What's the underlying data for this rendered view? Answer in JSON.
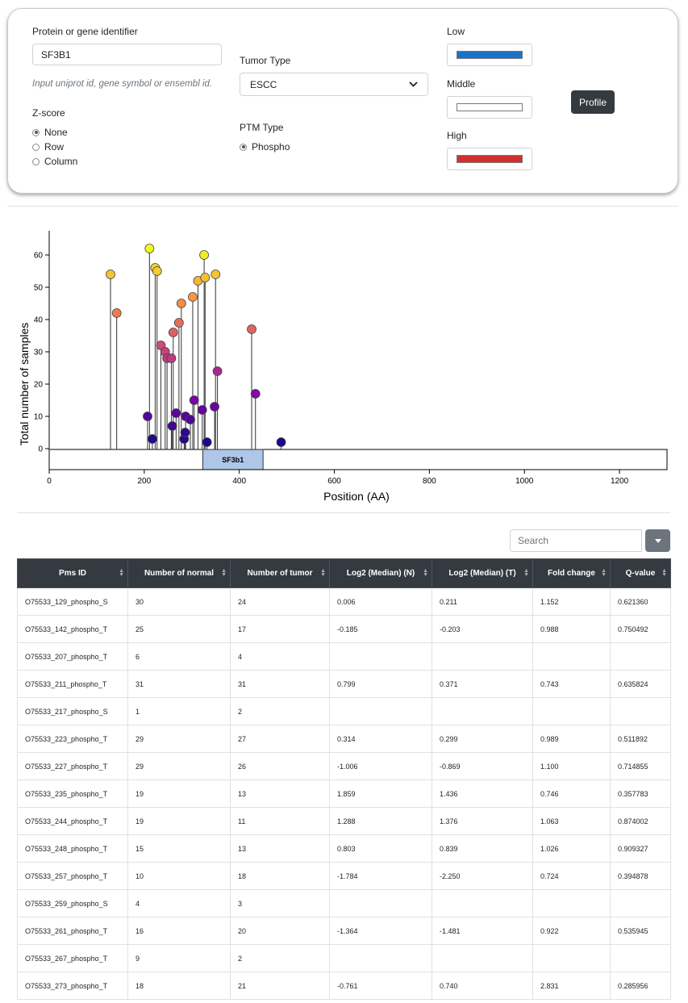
{
  "form": {
    "identifier_label": "Protein or gene identifier",
    "identifier_value": "SF3B1",
    "identifier_hint": "Input uniprot id, gene symbol or ensembl id.",
    "zscore_label": "Z-score",
    "zscore_options": [
      "None",
      "Row",
      "Column"
    ],
    "tumor_label": "Tumor Type",
    "tumor_value": "ESCC",
    "ptm_label": "PTM Type",
    "ptm_option": "Phospho",
    "low_label": "Low",
    "low_color": "#1a73c9",
    "middle_label": "Middle",
    "middle_color": "#ffffff",
    "high_label": "High",
    "high_color": "#d32f2f",
    "profile_label": "Profile"
  },
  "chart_data": {
    "type": "lollipop",
    "xlabel": "Position (AA)",
    "ylabel": "Total number of samples",
    "xlim": [
      0,
      1300
    ],
    "ylim": [
      0,
      65
    ],
    "xticks": [
      0,
      200,
      400,
      600,
      800,
      1000,
      1200
    ],
    "yticks": [
      0,
      10,
      20,
      30,
      40,
      50,
      60
    ],
    "domain": {
      "name": "SF3b1",
      "start": 330,
      "end": 450
    },
    "points": [
      {
        "x": 129,
        "y": 54
      },
      {
        "x": 142,
        "y": 42
      },
      {
        "x": 207,
        "y": 10
      },
      {
        "x": 211,
        "y": 62
      },
      {
        "x": 217,
        "y": 3
      },
      {
        "x": 223,
        "y": 56
      },
      {
        "x": 227,
        "y": 55
      },
      {
        "x": 235,
        "y": 32
      },
      {
        "x": 244,
        "y": 30
      },
      {
        "x": 248,
        "y": 28
      },
      {
        "x": 257,
        "y": 28
      },
      {
        "x": 259,
        "y": 7
      },
      {
        "x": 261,
        "y": 36
      },
      {
        "x": 267,
        "y": 11
      },
      {
        "x": 273,
        "y": 39
      },
      {
        "x": 278,
        "y": 45
      },
      {
        "x": 284,
        "y": 3
      },
      {
        "x": 286,
        "y": 5
      },
      {
        "x": 287,
        "y": 10
      },
      {
        "x": 297,
        "y": 9
      },
      {
        "x": 302,
        "y": 47
      },
      {
        "x": 305,
        "y": 15
      },
      {
        "x": 313,
        "y": 52
      },
      {
        "x": 322,
        "y": 12
      },
      {
        "x": 326,
        "y": 60
      },
      {
        "x": 328,
        "y": 53
      },
      {
        "x": 332,
        "y": 2
      },
      {
        "x": 348,
        "y": 13
      },
      {
        "x": 350,
        "y": 54
      },
      {
        "x": 354,
        "y": 24
      },
      {
        "x": 426,
        "y": 37
      },
      {
        "x": 434,
        "y": 17
      },
      {
        "x": 488,
        "y": 2
      }
    ]
  },
  "search": {
    "placeholder": "Search"
  },
  "table": {
    "headers": [
      "Pms ID",
      "Number of normal",
      "Number of tumor",
      "Log2 (Median) (N)",
      "Log2 (Median) (T)",
      "Fold change",
      "Q-value"
    ],
    "rows": [
      [
        "O75533_129_phospho_S",
        "30",
        "24",
        "0.006",
        "0.211",
        "1.152",
        "0.621360"
      ],
      [
        "O75533_142_phospho_T",
        "25",
        "17",
        "-0.185",
        "-0.203",
        "0.988",
        "0.750492"
      ],
      [
        "O75533_207_phospho_T",
        "6",
        "4",
        "",
        "",
        "",
        ""
      ],
      [
        "O75533_211_phospho_T",
        "31",
        "31",
        "0.799",
        "0.371",
        "0.743",
        "0.635824"
      ],
      [
        "O75533_217_phospho_S",
        "1",
        "2",
        "",
        "",
        "",
        ""
      ],
      [
        "O75533_223_phospho_T",
        "29",
        "27",
        "0.314",
        "0.299",
        "0.989",
        "0.511892"
      ],
      [
        "O75533_227_phospho_T",
        "29",
        "26",
        "-1.006",
        "-0.869",
        "1.100",
        "0.714855"
      ],
      [
        "O75533_235_phospho_T",
        "19",
        "13",
        "1.859",
        "1.436",
        "0.746",
        "0.357783"
      ],
      [
        "O75533_244_phospho_T",
        "19",
        "11",
        "1.288",
        "1.376",
        "1.063",
        "0.874002"
      ],
      [
        "O75533_248_phospho_T",
        "15",
        "13",
        "0.803",
        "0.839",
        "1.026",
        "0.909327"
      ],
      [
        "O75533_257_phospho_T",
        "10",
        "18",
        "-1.784",
        "-2.250",
        "0.724",
        "0.394878"
      ],
      [
        "O75533_259_phospho_S",
        "4",
        "3",
        "",
        "",
        "",
        ""
      ],
      [
        "O75533_261_phospho_T",
        "16",
        "20",
        "-1.364",
        "-1.481",
        "0.922",
        "0.535945"
      ],
      [
        "O75533_267_phospho_T",
        "9",
        "2",
        "",
        "",
        "",
        ""
      ],
      [
        "O75533_273_phospho_T",
        "18",
        "21",
        "-0.761",
        "0.740",
        "2.831",
        "0.285956"
      ]
    ]
  }
}
